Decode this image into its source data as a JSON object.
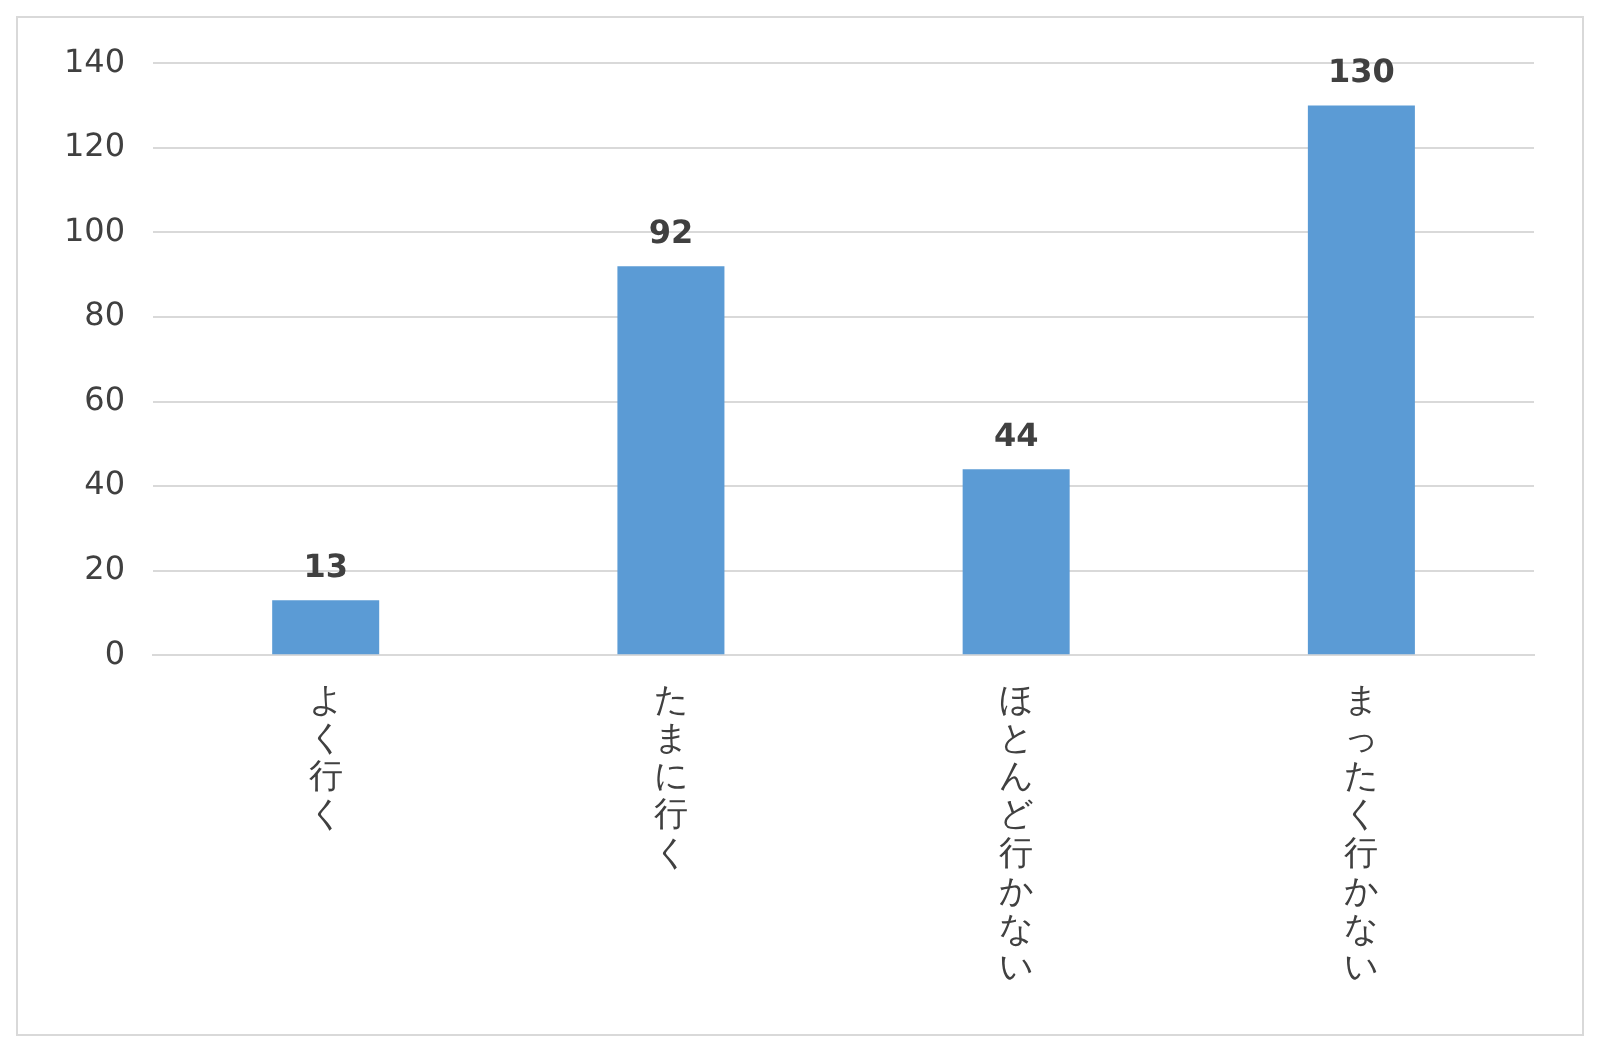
{
  "chart_data": {
    "type": "bar",
    "categories": [
      "よく行く",
      "たまに行く",
      "ほとんど行かない",
      "まったく行かない"
    ],
    "values": [
      13,
      92,
      44,
      130
    ],
    "color": "#5b9bd5",
    "ylim": [
      0,
      140
    ],
    "yticks": [
      0,
      20,
      40,
      60,
      80,
      100,
      120,
      140
    ],
    "grid": "y",
    "data_labels": true,
    "legend": false
  }
}
